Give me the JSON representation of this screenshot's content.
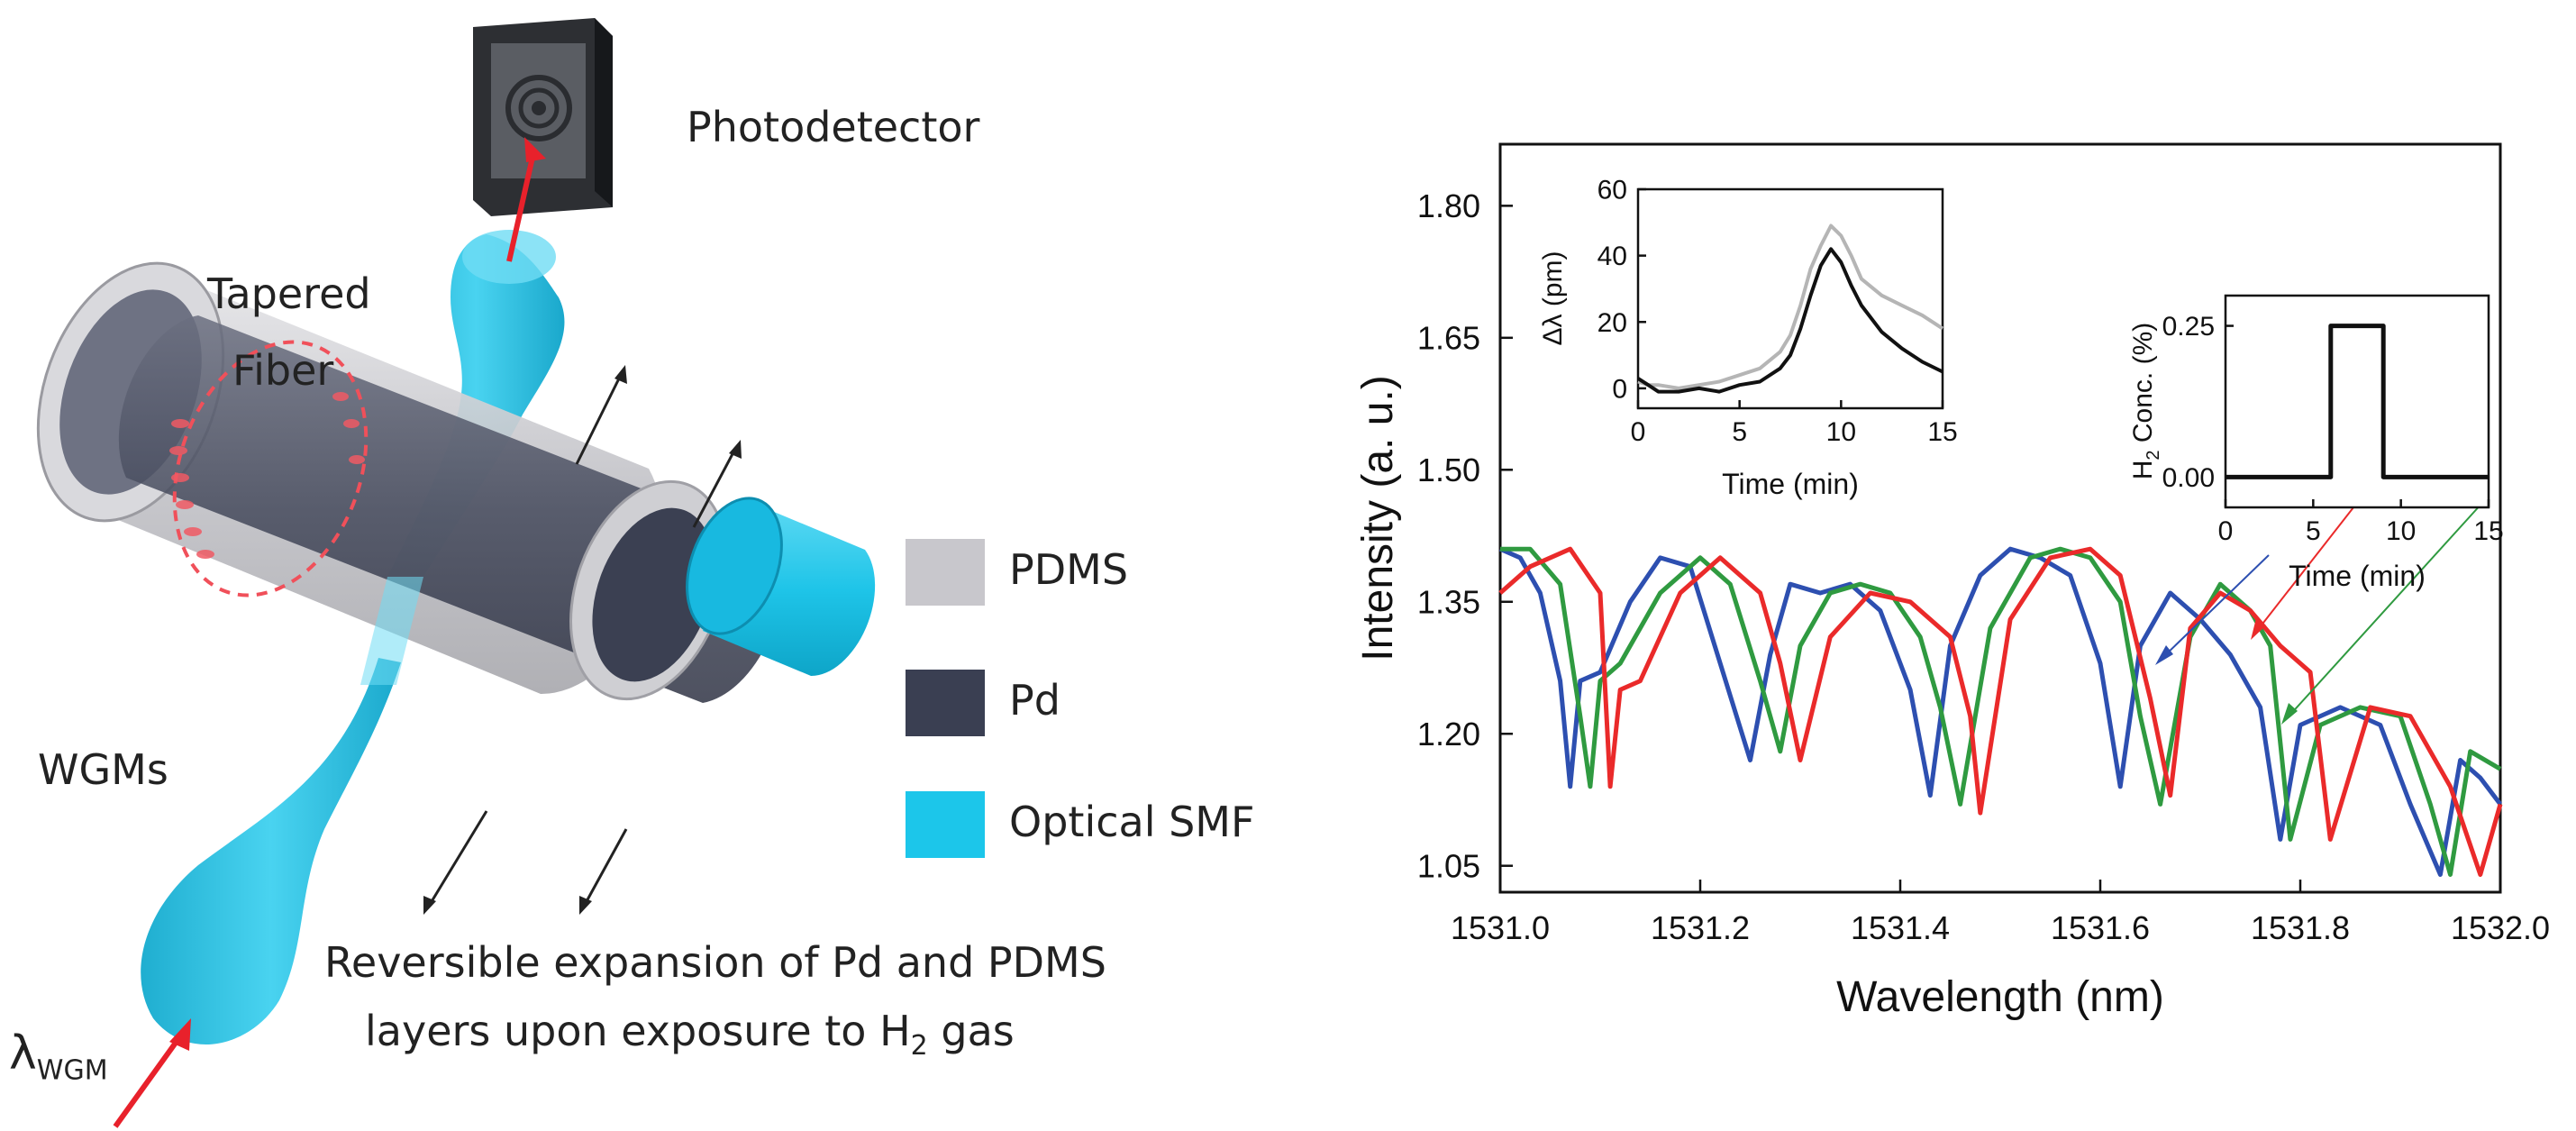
{
  "diagram": {
    "photodetector": "Photodetector",
    "tapered_fiber_1": "Tapered",
    "tapered_fiber_2": "Fiber",
    "wgms": "WGMs",
    "lambda_symbol": "λ",
    "lambda_sub": "WGM",
    "caption_line1": "Reversible expansion of Pd and PDMS",
    "caption_line2a": "layers upon exposure to H",
    "caption_sub": "2",
    "caption_line2b": " gas",
    "legend": [
      {
        "label": "PDMS",
        "color": "#c8c7cc"
      },
      {
        "label": "Pd",
        "color": "#3a3f52"
      },
      {
        "label": "Optical SMF",
        "color": "#1cc6ea"
      }
    ]
  },
  "chart_data": [
    {
      "type": "line",
      "xlabel": "Wavelength (nm)",
      "ylabel": "Intensity (a. u.)",
      "xlim": [
        1531.0,
        1532.0
      ],
      "ylim": [
        1.02,
        1.87
      ],
      "x_ticks": [
        "1531.0",
        "1531.2",
        "1531.4",
        "1531.6",
        "1531.8",
        "1532.0"
      ],
      "y_ticks": [
        "1.05",
        "1.20",
        "1.35",
        "1.50",
        "1.65",
        "1.80"
      ],
      "series": [
        {
          "name": "blue",
          "color": "#2d4fb0",
          "x": [
            1531.0,
            1531.02,
            1531.04,
            1531.06,
            1531.07,
            1531.08,
            1531.1,
            1531.13,
            1531.16,
            1531.19,
            1531.22,
            1531.25,
            1531.27,
            1531.29,
            1531.32,
            1531.35,
            1531.38,
            1531.41,
            1531.43,
            1531.45,
            1531.48,
            1531.51,
            1531.54,
            1531.57,
            1531.6,
            1531.62,
            1531.64,
            1531.67,
            1531.7,
            1531.73,
            1531.76,
            1531.78,
            1531.8,
            1531.84,
            1531.88,
            1531.91,
            1531.94,
            1531.96,
            1531.98,
            1532.0
          ],
          "values": [
            1.41,
            1.4,
            1.36,
            1.26,
            1.14,
            1.26,
            1.27,
            1.35,
            1.4,
            1.39,
            1.28,
            1.17,
            1.29,
            1.37,
            1.36,
            1.37,
            1.34,
            1.25,
            1.13,
            1.3,
            1.38,
            1.41,
            1.4,
            1.38,
            1.28,
            1.14,
            1.3,
            1.36,
            1.33,
            1.29,
            1.23,
            1.08,
            1.21,
            1.23,
            1.21,
            1.12,
            1.04,
            1.17,
            1.15,
            1.12
          ]
        },
        {
          "name": "green",
          "color": "#2f9a40",
          "x": [
            1531.0,
            1531.03,
            1531.06,
            1531.08,
            1531.09,
            1531.1,
            1531.12,
            1531.16,
            1531.2,
            1531.23,
            1531.26,
            1531.28,
            1531.3,
            1531.33,
            1531.36,
            1531.39,
            1531.42,
            1531.44,
            1531.46,
            1531.49,
            1531.53,
            1531.56,
            1531.59,
            1531.62,
            1531.64,
            1531.66,
            1531.69,
            1531.72,
            1531.75,
            1531.77,
            1531.79,
            1531.82,
            1531.86,
            1531.9,
            1531.93,
            1531.95,
            1531.97,
            1532.0
          ],
          "values": [
            1.41,
            1.41,
            1.37,
            1.22,
            1.14,
            1.26,
            1.28,
            1.36,
            1.4,
            1.37,
            1.26,
            1.18,
            1.3,
            1.36,
            1.37,
            1.36,
            1.31,
            1.23,
            1.12,
            1.32,
            1.4,
            1.41,
            1.4,
            1.35,
            1.22,
            1.12,
            1.31,
            1.37,
            1.34,
            1.3,
            1.08,
            1.21,
            1.23,
            1.22,
            1.12,
            1.04,
            1.18,
            1.16
          ]
        },
        {
          "name": "red",
          "color": "#ea2a2a",
          "x": [
            1531.0,
            1531.03,
            1531.07,
            1531.1,
            1531.11,
            1531.12,
            1531.14,
            1531.18,
            1531.22,
            1531.26,
            1531.28,
            1531.3,
            1531.33,
            1531.37,
            1531.41,
            1531.45,
            1531.47,
            1531.48,
            1531.51,
            1531.55,
            1531.59,
            1531.62,
            1531.65,
            1531.67,
            1531.69,
            1531.72,
            1531.75,
            1531.78,
            1531.81,
            1531.83,
            1531.87,
            1531.91,
            1531.95,
            1531.98,
            1532.0
          ],
          "values": [
            1.36,
            1.39,
            1.41,
            1.36,
            1.14,
            1.25,
            1.26,
            1.36,
            1.4,
            1.36,
            1.28,
            1.17,
            1.31,
            1.36,
            1.35,
            1.31,
            1.22,
            1.11,
            1.33,
            1.4,
            1.41,
            1.38,
            1.24,
            1.13,
            1.32,
            1.36,
            1.34,
            1.3,
            1.27,
            1.08,
            1.23,
            1.22,
            1.14,
            1.04,
            1.12
          ]
        }
      ]
    },
    {
      "type": "line",
      "xlabel": "Time (min)",
      "ylabel": "Δλ (pm)",
      "xlim": [
        0,
        15
      ],
      "ylim": [
        -6,
        60
      ],
      "x_ticks": [
        "0",
        "5",
        "10",
        "15"
      ],
      "y_ticks": [
        "0",
        "20",
        "40",
        "60"
      ],
      "series": [
        {
          "name": "gray",
          "color": "#b5b5b5",
          "x": [
            0,
            0.5,
            1,
            2,
            3,
            4,
            5,
            6,
            7,
            7.5,
            8,
            8.5,
            9,
            9.5,
            10,
            10.5,
            11,
            12,
            13,
            14,
            15
          ],
          "values": [
            2,
            1,
            1,
            0,
            1,
            2,
            4,
            6,
            11,
            16,
            25,
            36,
            43,
            49,
            46,
            40,
            33,
            28,
            25,
            22,
            18
          ]
        },
        {
          "name": "black",
          "color": "#111111",
          "x": [
            0,
            0.5,
            1,
            2,
            3,
            4,
            5,
            6,
            7,
            7.5,
            8,
            8.5,
            9,
            9.5,
            10,
            10.5,
            11,
            12,
            13,
            14,
            15
          ],
          "values": [
            3,
            1,
            -1,
            -1,
            0,
            -1,
            1,
            2,
            6,
            10,
            18,
            28,
            37,
            42,
            38,
            31,
            25,
            17,
            12,
            8,
            5
          ]
        }
      ]
    },
    {
      "type": "line",
      "xlabel": "Time (min)",
      "ylabel_main": "H",
      "ylabel_sub": "2",
      "ylabel_rest": " Conc. (%)",
      "xlim": [
        0,
        15
      ],
      "ylim": [
        -0.05,
        0.3
      ],
      "x_ticks": [
        "0",
        "5",
        "10",
        "15"
      ],
      "y_ticks": [
        "0.00",
        "0.25"
      ],
      "series": [
        {
          "name": "black",
          "color": "#111111",
          "x": [
            0,
            6,
            6,
            9,
            9,
            15
          ],
          "values": [
            0,
            0,
            0.25,
            0.25,
            0,
            0
          ]
        }
      ]
    }
  ]
}
